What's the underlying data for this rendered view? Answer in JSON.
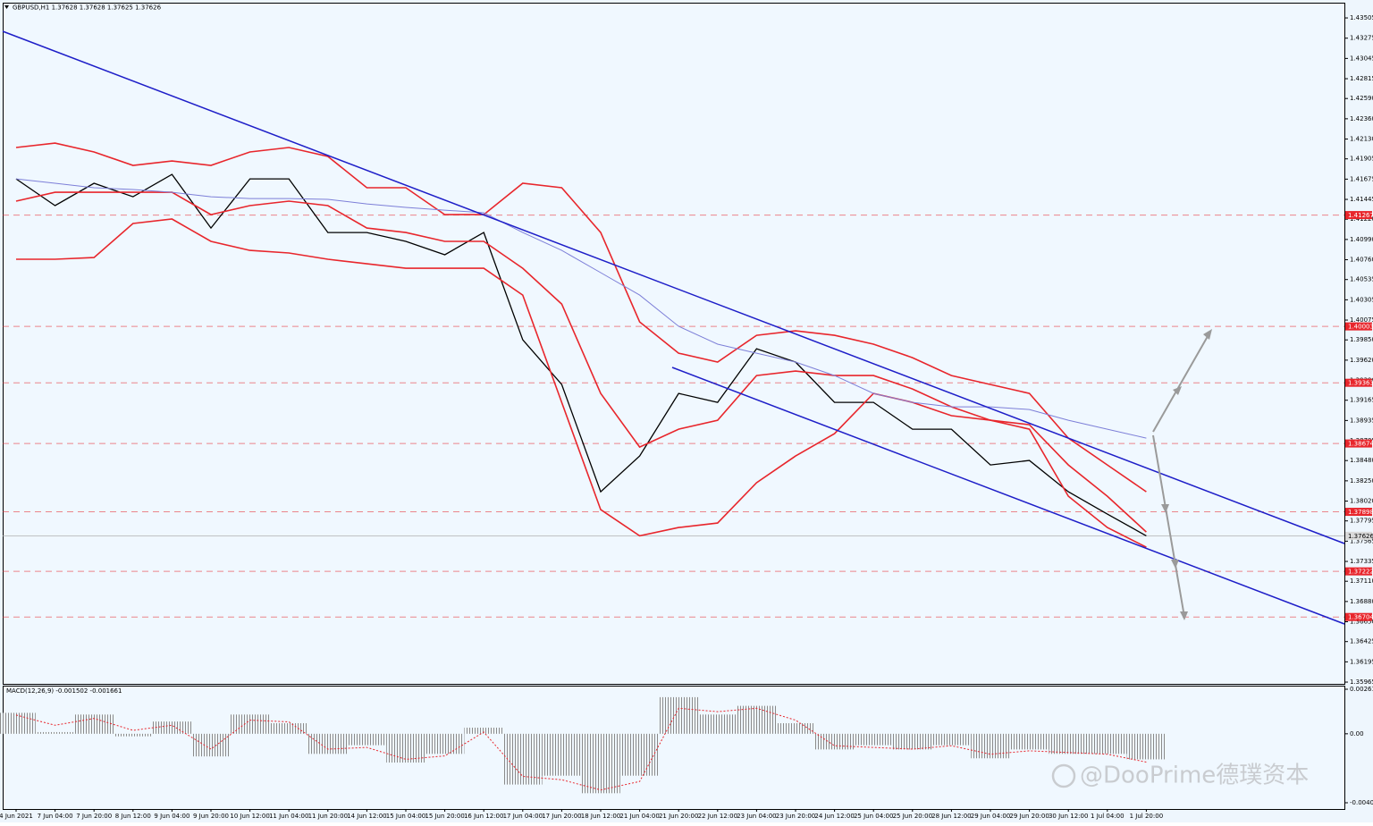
{
  "chart_data": [
    {
      "type": "line",
      "title": "GBPUSD,H1  1.37628 1.37628 1.37625 1.37626",
      "categories": [
        "4 Jun 2021",
        "7 Jun 04:00",
        "7 Jun 20:00",
        "8 Jun 12:00",
        "9 Jun 04:00",
        "9 Jun 20:00",
        "10 Jun 12:00",
        "11 Jun 04:00",
        "11 Jun 20:00",
        "14 Jun 12:00",
        "15 Jun 04:00",
        "15 Jun 20:00",
        "16 Jun 12:00",
        "17 Jun 04:00",
        "17 Jun 20:00",
        "18 Jun 12:00",
        "21 Jun 04:00",
        "21 Jun 20:00",
        "22 Jun 12:00",
        "23 Jun 04:00",
        "23 Jun 20:00",
        "24 Jun 12:00",
        "25 Jun 04:00",
        "25 Jun 20:00",
        "28 Jun 12:00",
        "29 Jun 04:00",
        "29 Jun 20:00",
        "30 Jun 12:00",
        "1 Jul 04:00",
        "1 Jul 20:00"
      ],
      "series": [
        {
          "color": "#000000",
          "values": [
            1.41678,
            1.41374,
            1.41628,
            1.41475,
            1.41729,
            1.4112,
            1.41678,
            1.41678,
            1.41069,
            1.41069,
            1.40968,
            1.40816,
            1.41069,
            1.39851,
            1.39344,
            1.38126,
            1.38532,
            1.39242,
            1.39141,
            1.3975,
            1.39598,
            1.39141,
            1.39141,
            1.38836,
            1.38836,
            1.3843,
            1.38481,
            1.38126,
            1.37872,
            1.37626
          ]
        },
        {
          "color": "#e8262c",
          "values": [
            1.42034,
            1.42084,
            1.41983,
            1.41831,
            1.41881,
            1.41831,
            1.41983,
            1.42034,
            1.41932,
            1.41577,
            1.41577,
            1.41272,
            1.41272,
            1.41628,
            1.41577,
            1.41069,
            1.40054,
            1.39699,
            1.39598,
            1.39902,
            1.39953,
            1.39902,
            1.39801,
            1.39648,
            1.39445,
            1.39344,
            1.39242,
            1.38735,
            1.3843,
            1.38126
          ]
        },
        {
          "color": "#e8262c",
          "values": [
            1.41425,
            1.41526,
            1.41526,
            1.41526,
            1.41526,
            1.41272,
            1.41374,
            1.41425,
            1.41374,
            1.4112,
            1.41069,
            1.40968,
            1.40968,
            1.40663,
            1.40257,
            1.39242,
            1.38633,
            1.38836,
            1.38938,
            1.39445,
            1.39496,
            1.39445,
            1.39445,
            1.39293,
            1.3909,
            1.38938,
            1.38887,
            1.3843,
            1.38075,
            1.37669
          ]
        },
        {
          "color": "#e8262c",
          "values": [
            1.40765,
            1.40765,
            1.40785,
            1.41171,
            1.41222,
            1.40968,
            1.40866,
            1.40836,
            1.40765,
            1.40714,
            1.40663,
            1.40663,
            1.40663,
            1.40359,
            1.39141,
            1.37923,
            1.37626,
            1.3772,
            1.37771,
            1.38228,
            1.38532,
            1.38786,
            1.39242,
            1.39141,
            1.38989,
            1.38938,
            1.38836,
            1.38075,
            1.3772,
            1.37497
          ]
        },
        {
          "color": "#7d7fd8",
          "values": [
            1.41678,
            1.41628,
            1.41577,
            1.41557,
            1.41526,
            1.41475,
            1.41455,
            1.41455,
            1.41445,
            1.41394,
            1.41354,
            1.41323,
            1.41293,
            1.41069,
            1.40866,
            1.40613,
            1.40359,
            1.40004,
            1.39801,
            1.39699,
            1.39598,
            1.39445,
            1.39242,
            1.39141,
            1.3909,
            1.3909,
            1.3906,
            1.38938,
            1.38836,
            1.38735
          ]
        }
      ],
      "ylim": [
        1.35945,
        1.43678
      ],
      "yticks": [
        1.43505,
        1.43275,
        1.43045,
        1.42815,
        {
          "value": 1.4259,
          "label": "1.42590"
        },
        {
          "value": 1.4236,
          "label": "1.42360"
        },
        {
          "value": 1.4213,
          "label": "1.42130"
        },
        1.41905,
        1.41675,
        1.41445,
        {
          "value": 1.4122,
          "label": "1.41220"
        },
        {
          "value": 1.4099,
          "label": "1.40990"
        },
        {
          "value": 1.4076,
          "label": "1.40760"
        },
        1.40535,
        1.40305,
        1.40075,
        {
          "value": 1.3985,
          "label": "1.39850"
        },
        {
          "value": 1.3962,
          "label": "1.39620"
        },
        {
          "value": 1.3939,
          "label": "1.39390"
        },
        1.39165,
        1.38935,
        1.38705,
        {
          "value": 1.3848,
          "label": "1.38480"
        },
        {
          "value": 1.3825,
          "label": "1.38250"
        },
        {
          "value": 1.3802,
          "label": "1.38020"
        },
        1.37795,
        1.37565,
        1.37335,
        {
          "value": 1.3711,
          "label": "1.37110"
        },
        {
          "value": 1.3688,
          "label": "1.36880"
        },
        {
          "value": 1.3665,
          "label": "1.36650"
        },
        1.36425,
        1.36195,
        1.35965
      ],
      "levels": [
        1.41267,
        1.40003,
        1.39363,
        1.38674,
        1.37898,
        1.37222,
        1.36704
      ],
      "levels_color": "#e8262c",
      "current_price": 1.37626,
      "grid": false
    },
    {
      "type": "bar",
      "title": "MACD(12,26,9) -0.001502 -0.001661",
      "values": [
        0.00123,
        0.0001,
        0.00113,
        -0.00015,
        0.00072,
        -0.00133,
        0.00113,
        0.00062,
        -0.00118,
        -0.00067,
        -0.00169,
        -0.00118,
        0.00036,
        -0.00298,
        -0.00246,
        -0.00349,
        -0.00246,
        0.00215,
        0.00113,
        0.00164,
        0.00062,
        -0.00092,
        -0.00067,
        -0.00092,
        -0.00067,
        -0.00144,
        -0.00092,
        -0.00118,
        -0.00118,
        -0.001502
      ],
      "color": "#8a8a8a",
      "signal": {
        "color": "#e8262c",
        "values": [
          0.0011,
          0.0005,
          0.0009,
          0.0002,
          0.0005,
          -0.0009,
          0.0008,
          0.0007,
          -0.0009,
          -0.0008,
          -0.0015,
          -0.0013,
          0.0001,
          -0.0025,
          -0.0027,
          -0.0033,
          -0.0028,
          0.0015,
          0.0013,
          0.0015,
          0.0008,
          -0.0007,
          -0.0008,
          -0.0009,
          -0.0007,
          -0.0012,
          -0.001,
          -0.0011,
          -0.0012,
          -0.001661
        ]
      },
      "ylim": [
        -0.00405,
        0.002616
      ],
      "yticks": [
        0.002616,
        {
          "value": 0,
          "label": "0.00"
        },
        -0.00405
      ]
    }
  ],
  "watermark": "@DooPrime德璞资本"
}
